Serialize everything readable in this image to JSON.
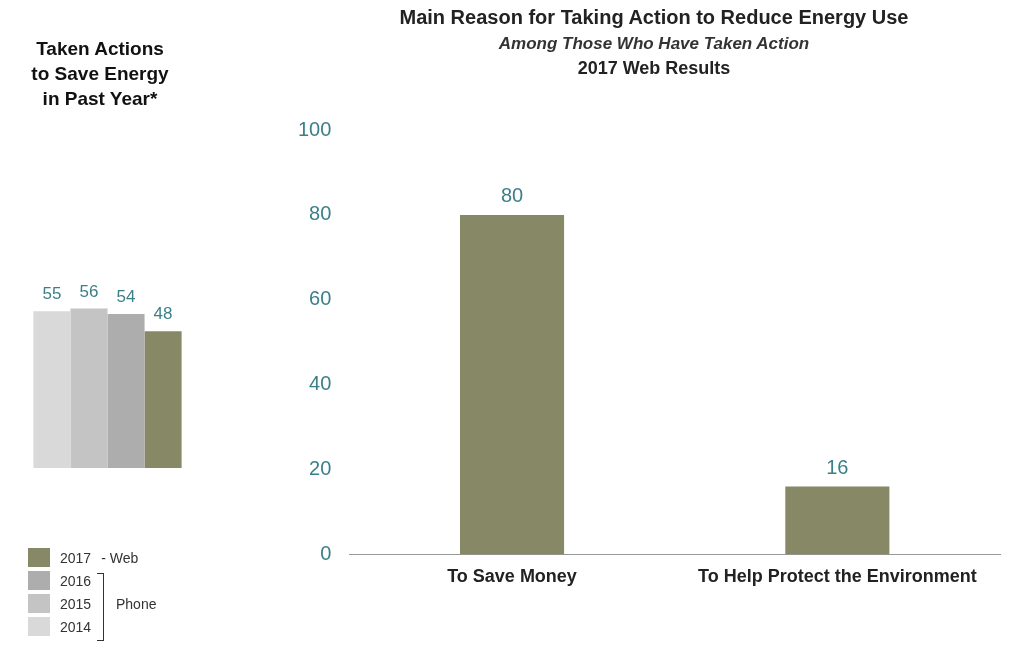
{
  "chart_data": [
    {
      "type": "bar",
      "title": "Taken Actions to Save Energy in Past Year*",
      "categories": [
        null
      ],
      "series": [
        {
          "name": "2014",
          "color": "#d9d9d9",
          "values": [
            55
          ]
        },
        {
          "name": "2015",
          "color": "#c4c4c4",
          "values": [
            56
          ]
        },
        {
          "name": "2016",
          "color": "#adadad",
          "values": [
            54
          ]
        },
        {
          "name": "2017",
          "color": "#878966",
          "values": [
            48
          ]
        }
      ],
      "data_labels": true,
      "legend": "bottom",
      "annotations": [
        "- Web",
        "Phone"
      ]
    },
    {
      "type": "bar",
      "title": "Main Reason for Taking Action to Reduce Energy Use",
      "subtitle": "Among Those Who Have Taken Action",
      "annotations": [
        "2017 Web Results"
      ],
      "categories": [
        "To Save Money",
        "To Help Protect the Environment"
      ],
      "series": [
        {
          "color": "#878966",
          "values": [
            80,
            16
          ]
        }
      ],
      "ylim": [
        0,
        100
      ],
      "yticks": [
        0,
        20,
        40,
        60,
        80,
        100
      ],
      "data_labels": true,
      "grid": false
    }
  ]
}
